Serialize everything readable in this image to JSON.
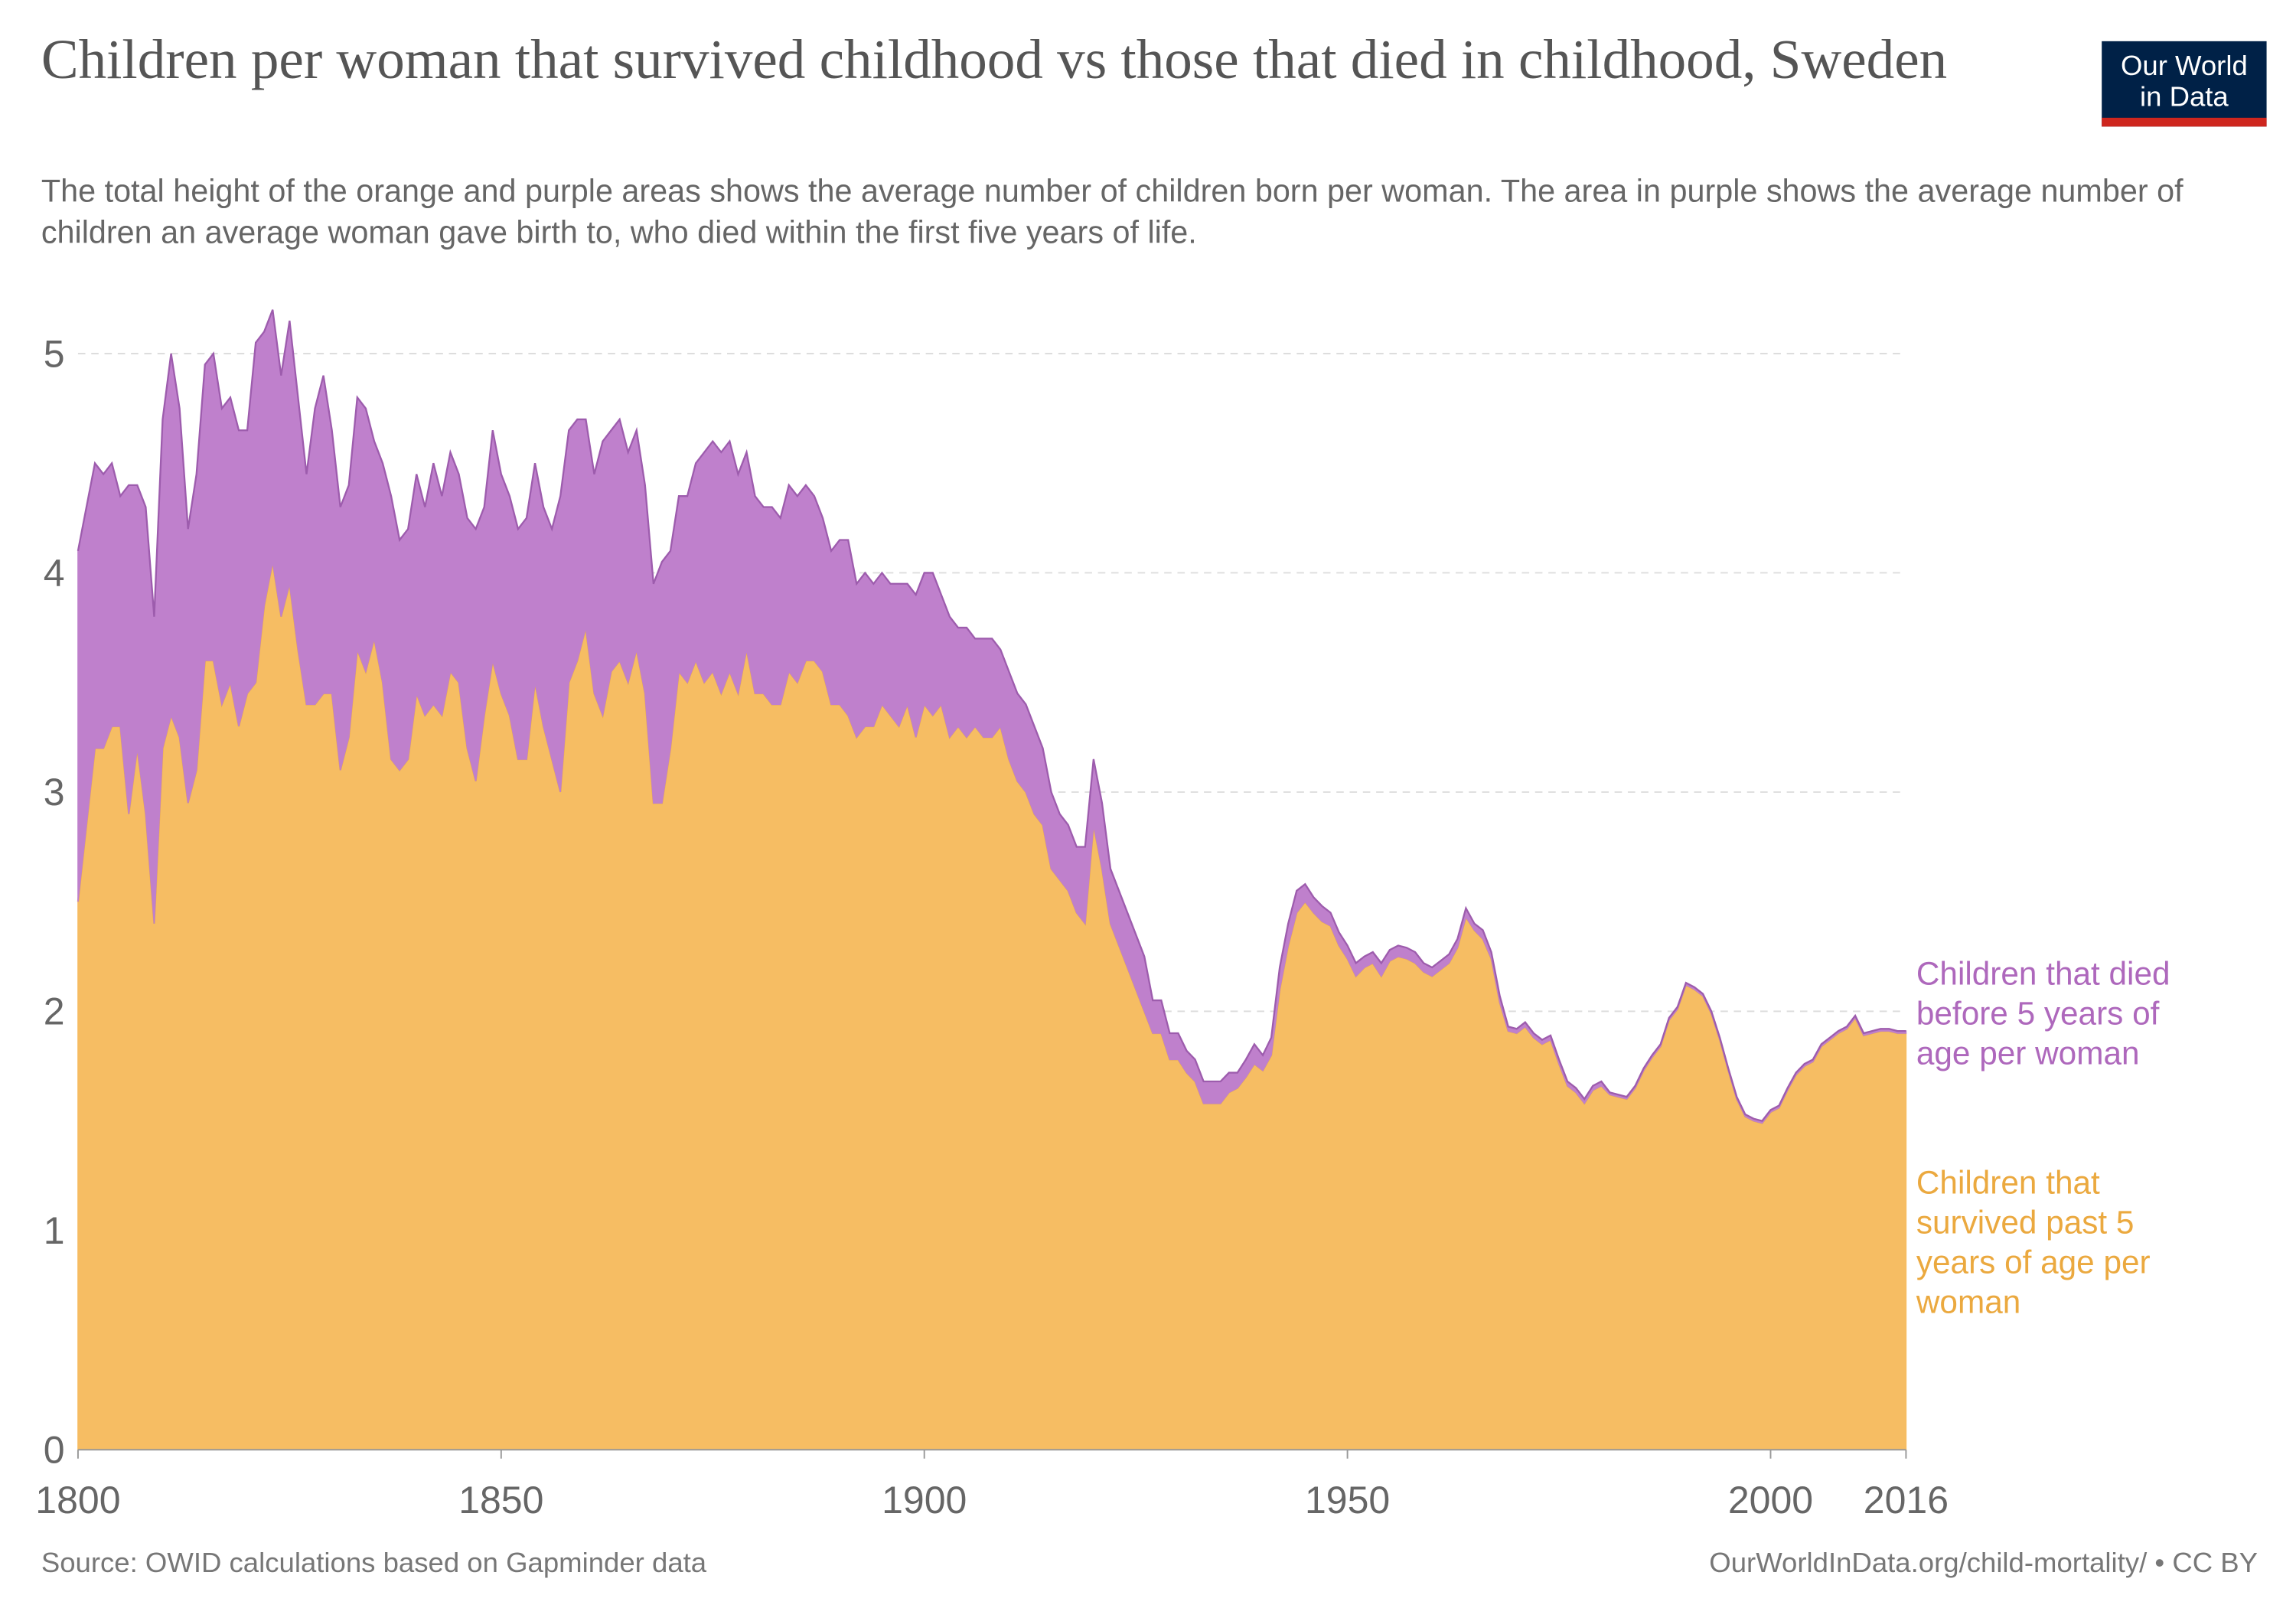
{
  "chart_data": {
    "type": "stacked_area",
    "title": "Children per woman that survived childhood vs those that died in childhood, Sweden",
    "subtitle": "The total height of the orange and purple areas shows the average number of children born per woman. The area in purple shows the average number of children an average woman gave birth to, who died within the first five years of life.",
    "source": "Source: OWID calculations based on Gapminder data",
    "url": "OurWorldInData.org/child-mortality/ • CC BY",
    "logo": "Our World in Data",
    "xlim": [
      1800,
      2016
    ],
    "xticks": [
      1800,
      1850,
      1900,
      1950,
      2000,
      2016
    ],
    "ylim": [
      0,
      5.25
    ],
    "yticks": [
      0,
      1,
      2,
      3,
      4,
      5
    ],
    "grid": true,
    "x": [
      1800,
      1801,
      1802,
      1803,
      1804,
      1805,
      1806,
      1807,
      1808,
      1809,
      1810,
      1811,
      1812,
      1813,
      1814,
      1815,
      1816,
      1817,
      1818,
      1819,
      1820,
      1821,
      1822,
      1823,
      1824,
      1825,
      1826,
      1827,
      1828,
      1829,
      1830,
      1831,
      1832,
      1833,
      1834,
      1835,
      1836,
      1837,
      1838,
      1839,
      1840,
      1841,
      1842,
      1843,
      1844,
      1845,
      1846,
      1847,
      1848,
      1849,
      1850,
      1851,
      1852,
      1853,
      1854,
      1855,
      1856,
      1857,
      1858,
      1859,
      1860,
      1861,
      1862,
      1863,
      1864,
      1865,
      1866,
      1867,
      1868,
      1869,
      1870,
      1871,
      1872,
      1873,
      1874,
      1875,
      1876,
      1877,
      1878,
      1879,
      1880,
      1881,
      1882,
      1883,
      1884,
      1885,
      1886,
      1887,
      1888,
      1889,
      1890,
      1891,
      1892,
      1893,
      1894,
      1895,
      1896,
      1897,
      1898,
      1899,
      1900,
      1901,
      1902,
      1903,
      1904,
      1905,
      1906,
      1907,
      1908,
      1909,
      1910,
      1911,
      1912,
      1913,
      1914,
      1915,
      1916,
      1917,
      1918,
      1919,
      1920,
      1921,
      1922,
      1923,
      1924,
      1925,
      1926,
      1927,
      1928,
      1929,
      1930,
      1931,
      1932,
      1933,
      1934,
      1935,
      1936,
      1937,
      1938,
      1939,
      1940,
      1941,
      1942,
      1943,
      1944,
      1945,
      1946,
      1947,
      1948,
      1949,
      1950,
      1951,
      1952,
      1953,
      1954,
      1955,
      1956,
      1957,
      1958,
      1959,
      1960,
      1961,
      1962,
      1963,
      1964,
      1965,
      1966,
      1967,
      1968,
      1969,
      1970,
      1971,
      1972,
      1973,
      1974,
      1975,
      1976,
      1977,
      1978,
      1979,
      1980,
      1981,
      1982,
      1983,
      1984,
      1985,
      1986,
      1987,
      1988,
      1989,
      1990,
      1991,
      1992,
      1993,
      1994,
      1995,
      1996,
      1997,
      1998,
      1999,
      2000,
      2001,
      2002,
      2003,
      2004,
      2005,
      2006,
      2007,
      2008,
      2009,
      2010,
      2011,
      2012,
      2013,
      2014,
      2015,
      2016
    ],
    "series": [
      {
        "name": "Children that survived past 5 years of age per woman",
        "color": "#f6bd63",
        "values": [
          2.5,
          2.85,
          3.2,
          3.2,
          3.3,
          3.3,
          2.9,
          3.2,
          2.9,
          2.4,
          3.2,
          3.35,
          3.25,
          2.95,
          3.1,
          3.6,
          3.6,
          3.4,
          3.5,
          3.3,
          3.45,
          3.5,
          3.85,
          4.05,
          3.8,
          3.95,
          3.65,
          3.4,
          3.4,
          3.45,
          3.45,
          3.1,
          3.25,
          3.65,
          3.55,
          3.7,
          3.5,
          3.15,
          3.1,
          3.15,
          3.45,
          3.35,
          3.4,
          3.35,
          3.55,
          3.5,
          3.2,
          3.05,
          3.35,
          3.6,
          3.45,
          3.35,
          3.15,
          3.15,
          3.5,
          3.3,
          3.15,
          3.0,
          3.5,
          3.6,
          3.75,
          3.45,
          3.35,
          3.55,
          3.6,
          3.5,
          3.65,
          3.45,
          2.95,
          2.95,
          3.2,
          3.55,
          3.5,
          3.6,
          3.5,
          3.55,
          3.45,
          3.55,
          3.45,
          3.65,
          3.45,
          3.45,
          3.4,
          3.4,
          3.55,
          3.5,
          3.6,
          3.6,
          3.55,
          3.4,
          3.4,
          3.35,
          3.25,
          3.3,
          3.3,
          3.4,
          3.35,
          3.3,
          3.4,
          3.25,
          3.4,
          3.35,
          3.4,
          3.25,
          3.3,
          3.25,
          3.3,
          3.25,
          3.25,
          3.3,
          3.15,
          3.05,
          3.0,
          2.9,
          2.85,
          2.65,
          2.6,
          2.55,
          2.45,
          2.4,
          2.85,
          2.65,
          2.4,
          2.3,
          2.2,
          2.1,
          2.0,
          1.9,
          1.9,
          1.78,
          1.78,
          1.72,
          1.68,
          1.58,
          1.58,
          1.58,
          1.63,
          1.65,
          1.7,
          1.76,
          1.73,
          1.8,
          2.1,
          2.3,
          2.45,
          2.5,
          2.45,
          2.41,
          2.39,
          2.3,
          2.24,
          2.16,
          2.2,
          2.22,
          2.16,
          2.23,
          2.25,
          2.24,
          2.22,
          2.18,
          2.16,
          2.19,
          2.22,
          2.29,
          2.43,
          2.37,
          2.33,
          2.24,
          2.04,
          1.91,
          1.9,
          1.93,
          1.88,
          1.85,
          1.87,
          1.76,
          1.66,
          1.63,
          1.58,
          1.64,
          1.66,
          1.62,
          1.61,
          1.6,
          1.65,
          1.73,
          1.79,
          1.84,
          1.96,
          2.01,
          2.12,
          2.1,
          2.07,
          1.99,
          1.87,
          1.73,
          1.6,
          1.52,
          1.5,
          1.49,
          1.54,
          1.56,
          1.64,
          1.71,
          1.75,
          1.77,
          1.84,
          1.87,
          1.9,
          1.92,
          1.97,
          1.89,
          1.9,
          1.91,
          1.91,
          1.9,
          1.9
        ]
      },
      {
        "name": "Children that died before 5 years of age per woman",
        "color": "#bf80cc",
        "values": [
          1.6,
          1.45,
          1.3,
          1.25,
          1.2,
          1.05,
          1.5,
          1.2,
          1.4,
          1.4,
          1.5,
          1.65,
          1.5,
          1.25,
          1.35,
          1.35,
          1.4,
          1.35,
          1.3,
          1.35,
          1.2,
          1.55,
          1.25,
          1.15,
          1.1,
          1.2,
          1.15,
          1.05,
          1.35,
          1.45,
          1.2,
          1.2,
          1.15,
          1.15,
          1.2,
          0.9,
          1.0,
          1.2,
          1.05,
          1.05,
          1.0,
          0.95,
          1.1,
          1.0,
          1.0,
          0.95,
          1.05,
          1.15,
          0.95,
          1.05,
          1.0,
          1.0,
          1.05,
          1.1,
          1.0,
          1.0,
          1.05,
          1.35,
          1.15,
          1.1,
          0.95,
          1.0,
          1.25,
          1.1,
          1.1,
          1.05,
          1.0,
          0.95,
          1.0,
          1.1,
          0.9,
          0.8,
          0.85,
          0.9,
          1.05,
          1.05,
          1.1,
          1.05,
          1.0,
          0.9,
          0.9,
          0.85,
          0.9,
          0.85,
          0.85,
          0.85,
          0.8,
          0.75,
          0.7,
          0.7,
          0.75,
          0.8,
          0.7,
          0.7,
          0.65,
          0.6,
          0.6,
          0.65,
          0.55,
          0.65,
          0.6,
          0.65,
          0.5,
          0.55,
          0.45,
          0.5,
          0.4,
          0.45,
          0.45,
          0.35,
          0.4,
          0.4,
          0.4,
          0.4,
          0.35,
          0.35,
          0.3,
          0.3,
          0.3,
          0.35,
          0.3,
          0.3,
          0.25,
          0.25,
          0.25,
          0.25,
          0.25,
          0.15,
          0.15,
          0.12,
          0.12,
          0.1,
          0.1,
          0.1,
          0.1,
          0.1,
          0.09,
          0.07,
          0.08,
          0.09,
          0.07,
          0.08,
          0.1,
          0.1,
          0.1,
          0.08,
          0.07,
          0.07,
          0.06,
          0.06,
          0.06,
          0.06,
          0.05,
          0.05,
          0.06,
          0.05,
          0.05,
          0.05,
          0.05,
          0.04,
          0.04,
          0.04,
          0.04,
          0.04,
          0.04,
          0.03,
          0.04,
          0.03,
          0.03,
          0.02,
          0.02,
          0.02,
          0.02,
          0.02,
          0.02,
          0.02,
          0.02,
          0.02,
          0.02,
          0.02,
          0.02,
          0.01,
          0.01,
          0.01,
          0.01,
          0.01,
          0.01,
          0.01,
          0.01,
          0.01,
          0.01,
          0.01,
          0.01,
          0.01,
          0.01,
          0.01,
          0.01,
          0.01,
          0.01,
          0.01,
          0.01,
          0.01,
          0.01,
          0.01,
          0.01,
          0.01,
          0.01,
          0.01,
          0.01,
          0.01,
          0.01,
          0.01,
          0.01,
          0.01,
          0.01,
          0.01,
          0.01
        ]
      }
    ]
  }
}
